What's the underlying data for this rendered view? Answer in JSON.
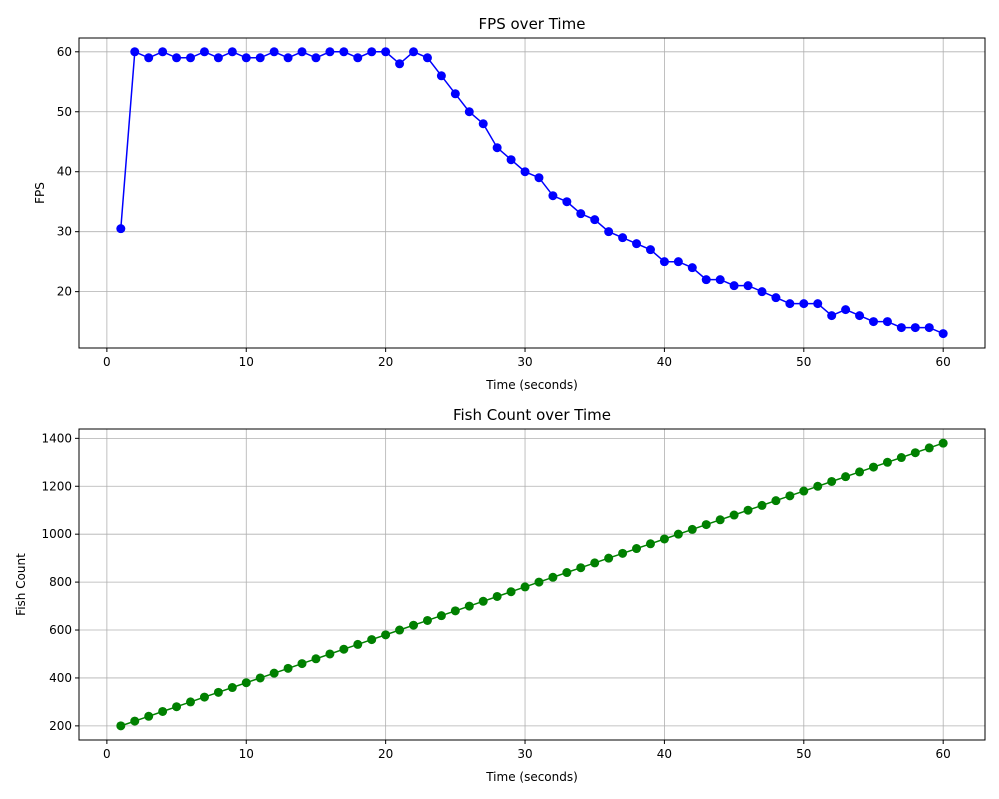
{
  "chart_data": [
    {
      "type": "line",
      "title": "FPS over Time",
      "xlabel": "Time (seconds)",
      "ylabel": "FPS",
      "xlim": [
        -2,
        63
      ],
      "ylim": [
        10.6,
        62.3
      ],
      "xticks": [
        0,
        10,
        20,
        30,
        40,
        50,
        60
      ],
      "yticks": [
        20,
        30,
        40,
        50,
        60
      ],
      "grid": true,
      "color": "#0000ff",
      "x": [
        1,
        2,
        3,
        4,
        5,
        6,
        7,
        8,
        9,
        10,
        11,
        12,
        13,
        14,
        15,
        16,
        17,
        18,
        19,
        20,
        21,
        22,
        23,
        24,
        25,
        26,
        27,
        28,
        29,
        30,
        31,
        32,
        33,
        34,
        35,
        36,
        37,
        38,
        39,
        40,
        41,
        42,
        43,
        44,
        45,
        46,
        47,
        48,
        49,
        50,
        51,
        52,
        53,
        54,
        55,
        56,
        57,
        58,
        59,
        60
      ],
      "y": [
        30.5,
        60,
        59,
        60,
        59,
        59,
        60,
        59,
        60,
        59,
        59,
        60,
        59,
        60,
        59,
        60,
        60,
        59,
        60,
        60,
        58,
        60,
        59,
        56,
        53,
        50,
        48,
        44,
        42,
        40,
        39,
        36,
        35,
        33,
        32,
        30,
        29,
        28,
        27,
        25,
        25,
        24,
        22,
        22,
        21,
        21,
        20,
        19,
        18,
        18,
        18,
        16,
        17,
        16,
        15,
        15,
        14,
        14,
        14,
        13
      ]
    },
    {
      "type": "line",
      "title": "Fish Count over Time",
      "xlabel": "Time (seconds)",
      "ylabel": "Fish Count",
      "xlim": [
        -2,
        63
      ],
      "ylim": [
        141,
        1439
      ],
      "xticks": [
        0,
        10,
        20,
        30,
        40,
        50,
        60
      ],
      "yticks": [
        200,
        400,
        600,
        800,
        1000,
        1200,
        1400
      ],
      "grid": true,
      "color": "#008000",
      "x": [
        1,
        2,
        3,
        4,
        5,
        6,
        7,
        8,
        9,
        10,
        11,
        12,
        13,
        14,
        15,
        16,
        17,
        18,
        19,
        20,
        21,
        22,
        23,
        24,
        25,
        26,
        27,
        28,
        29,
        30,
        31,
        32,
        33,
        34,
        35,
        36,
        37,
        38,
        39,
        40,
        41,
        42,
        43,
        44,
        45,
        46,
        47,
        48,
        49,
        50,
        51,
        52,
        53,
        54,
        55,
        56,
        57,
        58,
        59,
        60
      ],
      "y": [
        200,
        220,
        240,
        260,
        280,
        300,
        320,
        340,
        360,
        380,
        400,
        420,
        440,
        460,
        480,
        500,
        520,
        540,
        560,
        580,
        600,
        620,
        640,
        660,
        680,
        700,
        720,
        740,
        760,
        780,
        800,
        820,
        840,
        860,
        880,
        900,
        920,
        940,
        960,
        980,
        1000,
        1020,
        1040,
        1060,
        1080,
        1100,
        1120,
        1140,
        1160,
        1180,
        1200,
        1220,
        1240,
        1260,
        1280,
        1300,
        1320,
        1340,
        1360,
        1380
      ]
    }
  ]
}
